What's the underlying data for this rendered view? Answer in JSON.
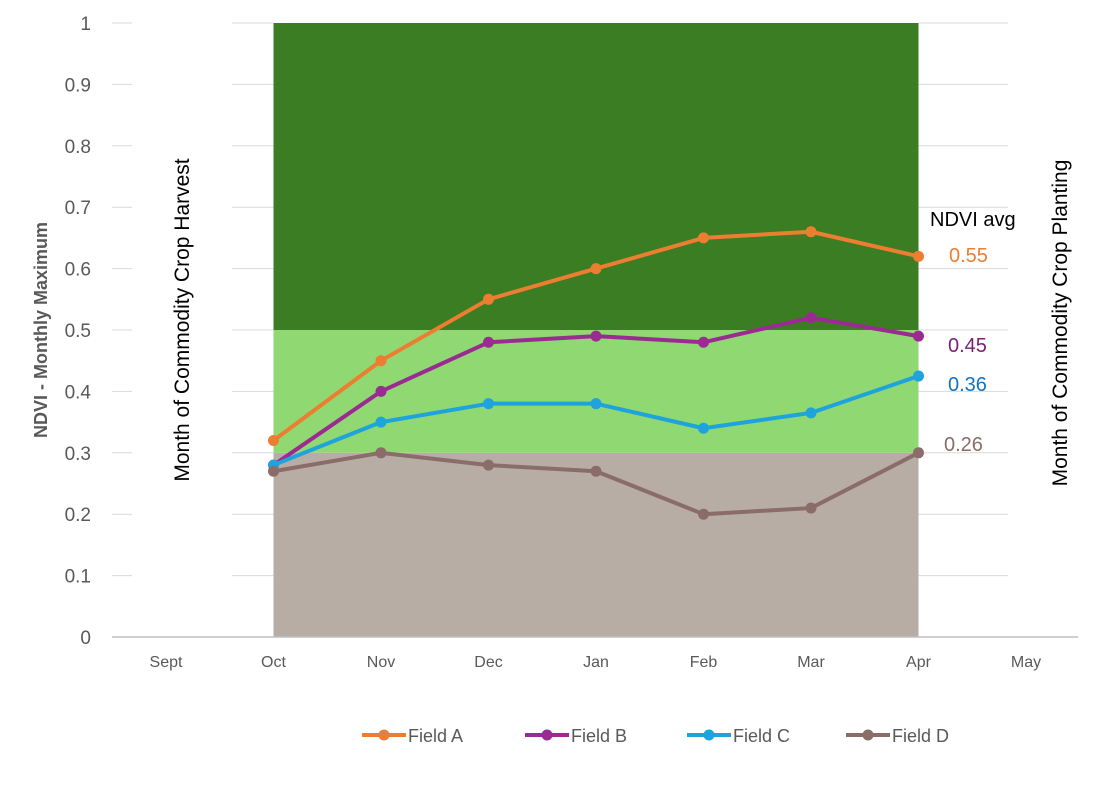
{
  "chart_data": {
    "type": "line",
    "ylabel": "NDVI - Monthly Maximum",
    "categories": [
      "Sept",
      "Oct",
      "Nov",
      "Dec",
      "Jan",
      "Feb",
      "Mar",
      "Apr",
      "May"
    ],
    "ylim": [
      0,
      1
    ],
    "yticks": [
      "0",
      "0.1",
      "0.2",
      "0.3",
      "0.4",
      "0.5",
      "0.6",
      "0.7",
      "0.8",
      "0.9",
      "1"
    ],
    "grid": true,
    "legend_position": "bottom",
    "bands": [
      {
        "from": 0,
        "to": 0.3,
        "color": "#b8ada5",
        "x_start": "Oct",
        "x_end": "Apr"
      },
      {
        "from": 0.3,
        "to": 0.5,
        "color": "#8fd872",
        "x_start": "Oct",
        "x_end": "Apr"
      },
      {
        "from": 0.5,
        "to": 1,
        "color": "#3b7d23",
        "x_start": "Oct",
        "x_end": "Apr"
      }
    ],
    "series": [
      {
        "name": "Field A",
        "color": "#ed7d31",
        "x": [
          "Oct",
          "Nov",
          "Dec",
          "Jan",
          "Feb",
          "Mar",
          "Apr"
        ],
        "values": [
          0.32,
          0.45,
          0.55,
          0.6,
          0.65,
          0.66,
          0.62
        ]
      },
      {
        "name": "Field B",
        "color": "#9b2b92",
        "x": [
          "Oct",
          "Nov",
          "Dec",
          "Jan",
          "Feb",
          "Mar",
          "Apr"
        ],
        "values": [
          0.28,
          0.4,
          0.48,
          0.49,
          0.48,
          0.52,
          0.49
        ]
      },
      {
        "name": "Field C",
        "color": "#1ea3dc",
        "x": [
          "Oct",
          "Nov",
          "Dec",
          "Jan",
          "Feb",
          "Mar",
          "Apr"
        ],
        "values": [
          0.28,
          0.35,
          0.38,
          0.38,
          0.34,
          0.365,
          0.425
        ]
      },
      {
        "name": "Field D",
        "color": "#8a6d68",
        "x": [
          "Oct",
          "Nov",
          "Dec",
          "Jan",
          "Feb",
          "Mar",
          "Apr"
        ],
        "values": [
          0.27,
          0.3,
          0.28,
          0.27,
          0.2,
          0.21,
          0.3
        ]
      }
    ],
    "annotations": {
      "harvest_label": "Month of Commodity Crop Harvest",
      "planting_label": "Month of Commodity Crop Planting",
      "avg_header": "NDVI avg",
      "averages": [
        {
          "series": "Field A",
          "text": "0.55",
          "color": "#ed7d31"
        },
        {
          "series": "Field B",
          "text": "0.45",
          "color": "#7b1f73"
        },
        {
          "series": "Field C",
          "text": "0.36",
          "color": "#0f74c4"
        },
        {
          "series": "Field D",
          "text": "0.26",
          "color": "#8a6d68"
        }
      ]
    }
  }
}
